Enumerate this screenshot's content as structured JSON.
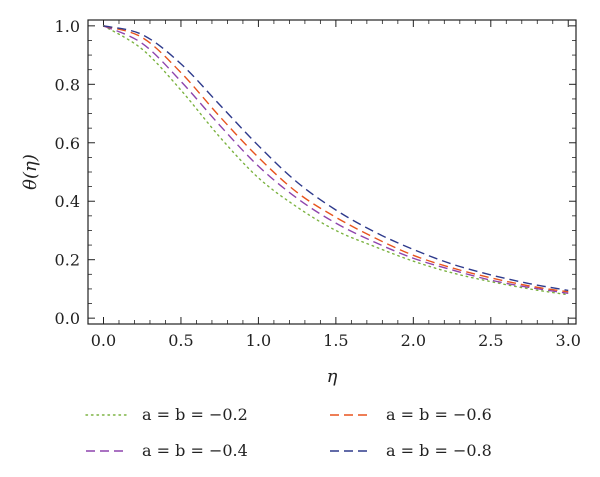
{
  "chart_data": {
    "type": "line",
    "xlabel": "η",
    "ylabel": "θ(η)",
    "xlim": [
      -0.1,
      3.05
    ],
    "ylim": [
      -0.02,
      1.02
    ],
    "x_ticks": [
      "0.0",
      "0.5",
      "1.0",
      "1.5",
      "2.0",
      "2.5",
      "3.0"
    ],
    "y_ticks": [
      "0.0",
      "0.2",
      "0.4",
      "0.6",
      "0.8",
      "1.0"
    ],
    "grid": false,
    "legend_position": "bottom",
    "x": [
      0.0,
      0.25,
      0.5,
      0.75,
      1.0,
      1.25,
      1.5,
      1.75,
      2.0,
      2.25,
      2.5,
      2.75,
      3.0
    ],
    "series": [
      {
        "name": "a = b = −0.2",
        "color": "#7cb342",
        "dash": "dotted",
        "values": [
          1.0,
          0.92,
          0.78,
          0.62,
          0.48,
          0.38,
          0.3,
          0.245,
          0.195,
          0.155,
          0.125,
          0.1,
          0.08
        ]
      },
      {
        "name": "a = b = −0.4",
        "color": "#8e44ad",
        "dash": "dashed",
        "values": [
          1.0,
          0.94,
          0.81,
          0.66,
          0.52,
          0.41,
          0.325,
          0.26,
          0.205,
          0.165,
          0.13,
          0.105,
          0.085
        ]
      },
      {
        "name": "a = b = −0.6",
        "color": "#e8541e",
        "dash": "dashed",
        "values": [
          1.0,
          0.96,
          0.84,
          0.69,
          0.55,
          0.43,
          0.345,
          0.275,
          0.215,
          0.172,
          0.138,
          0.11,
          0.09
        ]
      },
      {
        "name": "a = b = −0.8",
        "color": "#2e3a8c",
        "dash": "dashed",
        "values": [
          1.0,
          0.97,
          0.87,
          0.73,
          0.59,
          0.465,
          0.37,
          0.295,
          0.235,
          0.185,
          0.148,
          0.118,
          0.095
        ]
      }
    ]
  }
}
